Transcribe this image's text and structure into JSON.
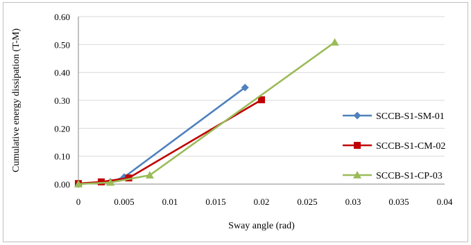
{
  "chart_data": {
    "type": "line",
    "xlabel": "Sway angle (rad)",
    "ylabel": "Cumulative energy dissipation (T-M)",
    "xlim": [
      0,
      0.04
    ],
    "ylim": [
      0,
      0.6
    ],
    "x_ticks": [
      "0",
      "0.005",
      "0.01",
      "0.015",
      "0.02",
      "0.025",
      "0.03",
      "0.035",
      "0.04"
    ],
    "y_ticks": [
      "0.00",
      "0.10",
      "0.20",
      "0.30",
      "0.40",
      "0.50",
      "0.60"
    ],
    "grid": "horizontal",
    "legend_position": "right",
    "series": [
      {
        "name": "SCCB-S1-SM-01",
        "color": "#4f81bd",
        "marker": "diamond",
        "points": [
          [
            0,
            0.0
          ],
          [
            0.0035,
            0.008
          ],
          [
            0.005,
            0.025
          ],
          [
            0.0182,
            0.346
          ]
        ]
      },
      {
        "name": "SCCB-S1-CM-02",
        "color": "#c00000",
        "marker": "square",
        "points": [
          [
            0,
            0.002
          ],
          [
            0.0025,
            0.008
          ],
          [
            0.0055,
            0.022
          ],
          [
            0.02,
            0.302
          ]
        ]
      },
      {
        "name": "SCCB-S1-CP-03",
        "color": "#9bbb59",
        "marker": "triangle",
        "points": [
          [
            0,
            0.0
          ],
          [
            0.0035,
            0.006
          ],
          [
            0.0078,
            0.032
          ],
          [
            0.028,
            0.508
          ]
        ]
      }
    ]
  }
}
